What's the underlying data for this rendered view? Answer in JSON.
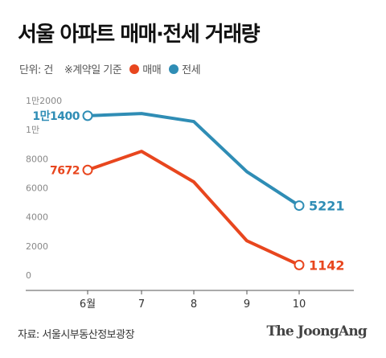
{
  "header": {
    "title": "서울 아파트 매매·전세 거래량",
    "unit": "단위: 건",
    "note": "※계약일 기준"
  },
  "legend": [
    {
      "name": "매매",
      "color": "#e8461e"
    },
    {
      "name": "전세",
      "color": "#2f8db5"
    }
  ],
  "footer": {
    "source": "자료: 서울시부동산정보광장",
    "logo": "The JoongAng"
  },
  "chart_data": {
    "type": "line",
    "x": [
      "6월",
      "7",
      "8",
      "9",
      "10"
    ],
    "y_ticks": [
      {
        "value": 0,
        "label": "0"
      },
      {
        "value": 2000,
        "label": "2000"
      },
      {
        "value": 4000,
        "label": "4000"
      },
      {
        "value": 6000,
        "label": "6000"
      },
      {
        "value": 8000,
        "label": "8000"
      },
      {
        "value": 10000,
        "label": "1만"
      },
      {
        "value": 12000,
        "label": "1만2000"
      }
    ],
    "ylim": [
      0,
      12000
    ],
    "grid": false,
    "series": [
      {
        "name": "매매",
        "color": "#e8461e",
        "values": [
          7672,
          8950,
          6850,
          2800,
          1142
        ],
        "start_label": "7672",
        "end_label": "1142"
      },
      {
        "name": "전세",
        "color": "#2f8db5",
        "values": [
          11400,
          11550,
          11000,
          7550,
          5221
        ],
        "start_label": "1만1400",
        "end_label": "5221"
      }
    ]
  }
}
